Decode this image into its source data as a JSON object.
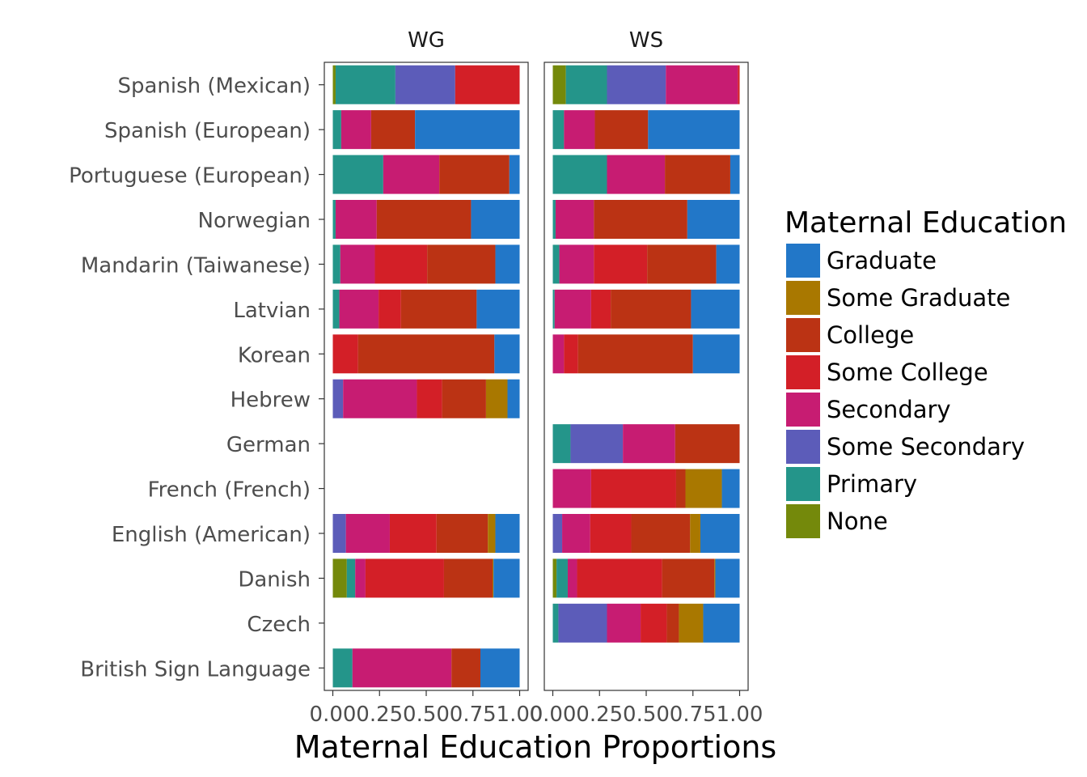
{
  "chart_data": {
    "type": "bar",
    "orientation": "horizontal",
    "stacked": true,
    "title": "",
    "xlabel": "Maternal Education Proportions",
    "ylabel": "",
    "xlim": [
      0,
      1
    ],
    "x_ticks": [
      "0.00",
      "0.25",
      "0.50",
      "0.75",
      "1.00"
    ],
    "grid": false,
    "legend_position": "right",
    "legend_title": "Maternal Education",
    "levels": [
      "None",
      "Primary",
      "Some Secondary",
      "Secondary",
      "Some College",
      "College",
      "Some Graduate",
      "Graduate"
    ],
    "legend_order": [
      "Graduate",
      "Some Graduate",
      "College",
      "Some College",
      "Secondary",
      "Some Secondary",
      "Primary",
      "None"
    ],
    "colors": {
      "Graduate": "#2277c8",
      "Some Graduate": "#a97800",
      "College": "#bb3314",
      "Some College": "#d31f27",
      "Secondary": "#c71c72",
      "Some Secondary": "#5c5cb9",
      "Primary": "#24958a",
      "None": "#74890b"
    },
    "categories": [
      "Spanish (Mexican)",
      "Spanish (European)",
      "Portuguese (European)",
      "Norwegian",
      "Mandarin (Taiwanese)",
      "Latvian",
      "Korean",
      "Hebrew",
      "German",
      "French (French)",
      "English (American)",
      "Danish",
      "Czech",
      "British Sign Language"
    ],
    "panels": [
      {
        "label": "WG",
        "bars": {
          "Spanish (Mexican)": [
            0.015,
            0.32,
            0.32,
            0.0,
            0.345,
            0.0,
            0.0,
            0.0
          ],
          "Spanish (European)": [
            0.0,
            0.045,
            0.0,
            0.16,
            0.0,
            0.235,
            0.0,
            0.56
          ],
          "Portuguese (European)": [
            0.0,
            0.27,
            0.0,
            0.3,
            0.0,
            0.375,
            0.0,
            0.055
          ],
          "Norwegian": [
            0.0,
            0.015,
            0.0,
            0.22,
            0.0,
            0.505,
            0.0,
            0.26
          ],
          "Mandarin (Taiwanese)": [
            0.0,
            0.04,
            0.0,
            0.185,
            0.28,
            0.365,
            0.0,
            0.13
          ],
          "Latvian": [
            0.0,
            0.035,
            0.0,
            0.21,
            0.12,
            0.405,
            0.0,
            0.23
          ],
          "Korean": [
            0.0,
            0.0,
            0.0,
            0.0,
            0.135,
            0.73,
            0.0,
            0.135
          ],
          "Hebrew": [
            0.0,
            0.0,
            0.055,
            0.395,
            0.135,
            0.235,
            0.115,
            0.065
          ],
          "German": null,
          "French (French)": null,
          "English (American)": [
            0.0,
            0.0,
            0.07,
            0.235,
            0.25,
            0.275,
            0.04,
            0.13
          ],
          "Danish": [
            0.075,
            0.045,
            0.0,
            0.055,
            0.42,
            0.26,
            0.005,
            0.14
          ],
          "Czech": null,
          "British Sign Language": [
            0.0,
            0.105,
            0.0,
            0.53,
            0.0,
            0.155,
            0.0,
            0.21
          ]
        }
      },
      {
        "label": "WS",
        "bars": {
          "Spanish (Mexican)": [
            0.07,
            0.22,
            0.315,
            0.385,
            0.01,
            0.0,
            0.0,
            0.0
          ],
          "Spanish (European)": [
            0.0,
            0.06,
            0.0,
            0.165,
            0.0,
            0.285,
            0.0,
            0.49
          ],
          "Portuguese (European)": [
            0.0,
            0.29,
            0.0,
            0.31,
            0.0,
            0.35,
            0.0,
            0.05
          ],
          "Norwegian": [
            0.0,
            0.015,
            0.0,
            0.205,
            0.0,
            0.5,
            0.0,
            0.28
          ],
          "Mandarin (Taiwanese)": [
            0.0,
            0.035,
            0.0,
            0.185,
            0.285,
            0.37,
            0.0,
            0.125
          ],
          "Latvian": [
            0.0,
            0.01,
            0.0,
            0.195,
            0.105,
            0.43,
            0.0,
            0.26
          ],
          "Korean": [
            0.0,
            0.0,
            0.0,
            0.06,
            0.075,
            0.615,
            0.0,
            0.25
          ],
          "Hebrew": null,
          "German": [
            0.0,
            0.095,
            0.28,
            0.28,
            0.0,
            0.345,
            0.0,
            0.0
          ],
          "French (French)": [
            0.0,
            0.0,
            0.0,
            0.205,
            0.455,
            0.05,
            0.195,
            0.095
          ],
          "English (American)": [
            0.0,
            0.0,
            0.05,
            0.15,
            0.22,
            0.315,
            0.055,
            0.21
          ],
          "Danish": [
            0.02,
            0.06,
            0.0,
            0.05,
            0.455,
            0.28,
            0.005,
            0.13
          ],
          "Czech": [
            0.0,
            0.03,
            0.26,
            0.18,
            0.14,
            0.065,
            0.13,
            0.195
          ],
          "British Sign Language": null
        }
      }
    ]
  }
}
